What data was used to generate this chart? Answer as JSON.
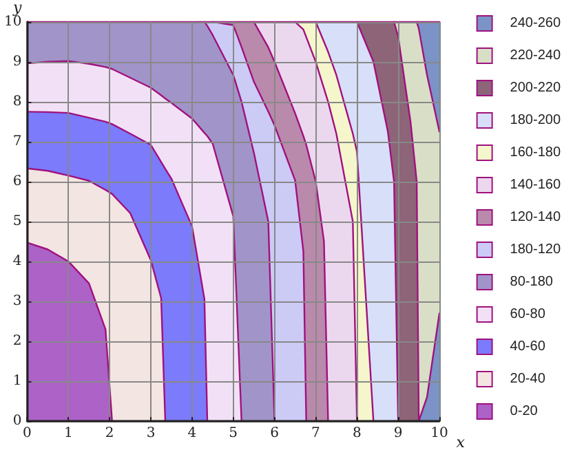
{
  "chart_data": {
    "type": "area",
    "stacked": true,
    "xlabel": "x",
    "ylabel": "y",
    "xlim": [
      0,
      10
    ],
    "ylim": [
      0,
      10
    ],
    "xticks": [
      0,
      1,
      2,
      3,
      4,
      5,
      6,
      7,
      8,
      9,
      10
    ],
    "yticks": [
      0,
      1,
      2,
      3,
      4,
      5,
      6,
      7,
      8,
      9,
      10
    ],
    "grid": true,
    "legend": "right",
    "marker": "none",
    "line_style": "solid",
    "x": [
      0,
      0.5,
      1,
      1.5,
      1.9,
      2.06,
      2.5,
      3,
      3.25,
      3.35,
      3.5,
      4,
      4.3,
      4.37,
      4.5,
      5,
      5.2,
      5.5,
      5.85,
      6,
      6.5,
      6.7,
      6.77,
      7,
      7.2,
      7.3,
      7.5,
      7.9,
      8,
      8.4,
      8.5,
      8.75,
      8.9,
      9,
      9.3,
      9.45,
      9.5,
      9.7,
      10
    ],
    "series": [
      {
        "color": "#7b93c6",
        "values": [
          null,
          null,
          null,
          null,
          null,
          null,
          null,
          null,
          null,
          null,
          null,
          null,
          null,
          null,
          null,
          null,
          null,
          null,
          null,
          null,
          null,
          null,
          null,
          null,
          null,
          null,
          null,
          null,
          null,
          null,
          null,
          null,
          null,
          null,
          null,
          null,
          0,
          0.6,
          2.7
        ]
      },
      {
        "name": "0-20",
        "color": "#ad62c8",
        "values": [
          4.47,
          4.3,
          4.0,
          3.45,
          2.3,
          0,
          null,
          null,
          null,
          null,
          null,
          null,
          null,
          null,
          null,
          null,
          null,
          null,
          null,
          null,
          null,
          null,
          null,
          null,
          null,
          null,
          null,
          null,
          null,
          null,
          null,
          null,
          null,
          null,
          null,
          null,
          null,
          null,
          null
        ]
      },
      {
        "name": "20-40",
        "color": "#f3e5e1",
        "values": [
          1.86,
          1.97,
          2.15,
          2.57,
          3.49,
          5.69,
          5.21,
          4.03,
          3.08,
          0,
          null,
          null,
          null,
          null,
          null,
          null,
          null,
          null,
          null,
          null,
          null,
          null,
          null,
          null,
          null,
          null,
          null,
          null,
          null,
          null,
          null,
          null,
          null,
          null,
          null,
          null,
          null,
          null,
          null
        ]
      },
      {
        "name": "40-60",
        "color": "#7b7bfb",
        "values": [
          1.42,
          1.47,
          1.57,
          1.58,
          1.71,
          1.75,
          1.99,
          2.89,
          3.41,
          6.32,
          6.07,
          4.88,
          3.06,
          0,
          null,
          null,
          null,
          null,
          null,
          null,
          null,
          null,
          null,
          null,
          null,
          null,
          null,
          null,
          null,
          null,
          null,
          null,
          null,
          null,
          null,
          null,
          null,
          null,
          null
        ]
      },
      {
        "name": "60-80",
        "color": "#f2e1f6",
        "values": [
          1.21,
          1.26,
          1.3,
          1.35,
          1.37,
          1.38,
          1.4,
          1.43,
          1.67,
          1.76,
          1.9,
          2.7,
          4.16,
          7.14,
          6.95,
          5.13,
          0,
          null,
          null,
          null,
          null,
          null,
          null,
          null,
          null,
          null,
          null,
          null,
          null,
          null,
          null,
          null,
          null,
          null,
          null,
          null,
          null,
          null,
          null
        ]
      },
      {
        "name": "80-180",
        "color": "#a194c9",
        "values": [
          1.04,
          1.0,
          0.98,
          1.05,
          1.13,
          1.18,
          1.4,
          1.65,
          1.84,
          1.92,
          2.03,
          2.42,
          2.78,
          2.76,
          2.72,
          3.54,
          8.0,
          6.72,
          5.0,
          0,
          null,
          null,
          null,
          null,
          null,
          null,
          null,
          null,
          null,
          null,
          null,
          null,
          null,
          null,
          null,
          null,
          null,
          null,
          null
        ]
      },
      {
        "name": "180-120",
        "color": "#cccbf6",
        "values": [
          null,
          null,
          null,
          null,
          null,
          null,
          null,
          null,
          null,
          null,
          null,
          null,
          0,
          0.1,
          0.33,
          1.25,
          1.37,
          1.78,
          2.75,
          7.41,
          6.03,
          4.25,
          0,
          null,
          null,
          null,
          null,
          null,
          null,
          null,
          null,
          null,
          null,
          null,
          null,
          null,
          null,
          null,
          null
        ]
      },
      {
        "name": "120-140",
        "color": "#b98aab",
        "values": [
          null,
          null,
          null,
          null,
          null,
          null,
          null,
          null,
          null,
          null,
          null,
          null,
          null,
          null,
          0,
          0.08,
          0.63,
          1.5,
          1.61,
          1.59,
          1.68,
          2.89,
          6.92,
          6.0,
          4.5,
          0,
          null,
          null,
          null,
          null,
          null,
          null,
          null,
          null,
          null,
          null,
          null,
          null,
          null
        ]
      },
      {
        "name": "140-160",
        "color": "#ecd8ee",
        "values": [
          null,
          null,
          null,
          null,
          null,
          null,
          null,
          null,
          null,
          null,
          null,
          null,
          null,
          null,
          null,
          null,
          null,
          0,
          0.64,
          1.0,
          2.29,
          2.67,
          2.7,
          3.0,
          3.83,
          8.0,
          7.2,
          5.0,
          0,
          null,
          null,
          null,
          null,
          null,
          null,
          null,
          null,
          null,
          null
        ]
      },
      {
        "name": "160-180",
        "color": "#f5f6cc",
        "values": [
          null,
          null,
          null,
          null,
          null,
          null,
          null,
          null,
          null,
          null,
          null,
          null,
          null,
          null,
          null,
          null,
          null,
          null,
          null,
          null,
          0,
          0.19,
          0.38,
          1.0,
          1.17,
          1.25,
          1.47,
          2.2,
          6.75,
          0,
          null,
          null,
          null,
          null,
          null,
          null,
          null,
          null,
          null
        ]
      },
      {
        "name": "180-200",
        "color": "#d8dff8",
        "values": [
          null,
          null,
          null,
          null,
          null,
          null,
          null,
          null,
          null,
          null,
          null,
          null,
          null,
          null,
          null,
          null,
          null,
          null,
          null,
          null,
          null,
          null,
          null,
          0,
          0.5,
          0.75,
          1.33,
          2.8,
          3.25,
          9.0,
          8.5,
          7.25,
          6.0,
          0,
          null,
          null,
          null,
          null,
          null
        ]
      },
      {
        "name": "200-220",
        "color": "#8d6478",
        "values": [
          null,
          null,
          null,
          null,
          null,
          null,
          null,
          null,
          null,
          null,
          null,
          null,
          null,
          null,
          null,
          null,
          null,
          null,
          null,
          null,
          null,
          null,
          null,
          null,
          null,
          null,
          null,
          null,
          0,
          1.0,
          1.5,
          2.75,
          4.0,
          9.63,
          7.5,
          6.0,
          0,
          null,
          null
        ]
      },
      {
        "name": "220-240",
        "color": "#d8dfc6",
        "values": [
          null,
          null,
          null,
          null,
          null,
          null,
          null,
          null,
          null,
          null,
          null,
          null,
          null,
          null,
          null,
          null,
          null,
          null,
          null,
          null,
          null,
          null,
          null,
          null,
          null,
          null,
          null,
          null,
          null,
          null,
          null,
          null,
          0,
          0.37,
          2.5,
          4.0,
          9.83,
          8.07,
          4.55
        ]
      },
      {
        "name": "240-260",
        "color": "#7b93c6",
        "values": [
          null,
          null,
          null,
          null,
          null,
          null,
          null,
          null,
          null,
          null,
          null,
          null,
          null,
          null,
          null,
          null,
          null,
          null,
          null,
          null,
          null,
          null,
          null,
          null,
          null,
          null,
          null,
          null,
          null,
          null,
          null,
          null,
          null,
          null,
          null,
          0,
          0.17,
          1.33,
          2.75
        ]
      }
    ]
  }
}
